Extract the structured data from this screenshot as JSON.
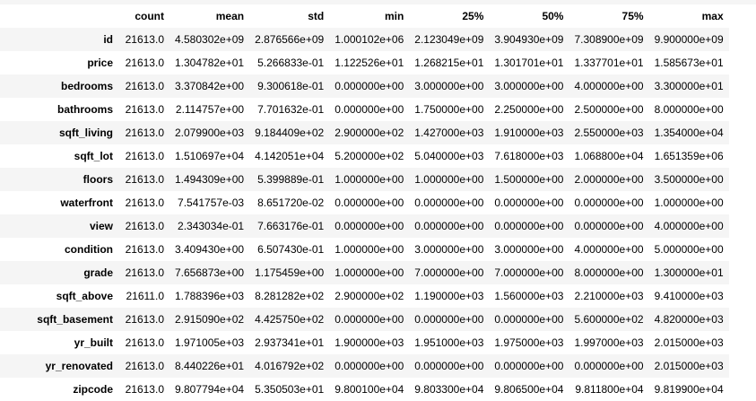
{
  "table": {
    "columns": [
      "",
      "count",
      "mean",
      "std",
      "min",
      "25%",
      "50%",
      "75%",
      "max"
    ],
    "rows": [
      {
        "index": "id",
        "values": [
          "21613.0",
          "4.580302e+09",
          "2.876566e+09",
          "1.000102e+06",
          "2.123049e+09",
          "3.904930e+09",
          "7.308900e+09",
          "9.900000e+09"
        ]
      },
      {
        "index": "price",
        "values": [
          "21613.0",
          "1.304782e+01",
          "5.266833e-01",
          "1.122526e+01",
          "1.268215e+01",
          "1.301701e+01",
          "1.337701e+01",
          "1.585673e+01"
        ]
      },
      {
        "index": "bedrooms",
        "values": [
          "21613.0",
          "3.370842e+00",
          "9.300618e-01",
          "0.000000e+00",
          "3.000000e+00",
          "3.000000e+00",
          "4.000000e+00",
          "3.300000e+01"
        ]
      },
      {
        "index": "bathrooms",
        "values": [
          "21613.0",
          "2.114757e+00",
          "7.701632e-01",
          "0.000000e+00",
          "1.750000e+00",
          "2.250000e+00",
          "2.500000e+00",
          "8.000000e+00"
        ]
      },
      {
        "index": "sqft_living",
        "values": [
          "21613.0",
          "2.079900e+03",
          "9.184409e+02",
          "2.900000e+02",
          "1.427000e+03",
          "1.910000e+03",
          "2.550000e+03",
          "1.354000e+04"
        ]
      },
      {
        "index": "sqft_lot",
        "values": [
          "21613.0",
          "1.510697e+04",
          "4.142051e+04",
          "5.200000e+02",
          "5.040000e+03",
          "7.618000e+03",
          "1.068800e+04",
          "1.651359e+06"
        ]
      },
      {
        "index": "floors",
        "values": [
          "21613.0",
          "1.494309e+00",
          "5.399889e-01",
          "1.000000e+00",
          "1.000000e+00",
          "1.500000e+00",
          "2.000000e+00",
          "3.500000e+00"
        ]
      },
      {
        "index": "waterfront",
        "values": [
          "21613.0",
          "7.541757e-03",
          "8.651720e-02",
          "0.000000e+00",
          "0.000000e+00",
          "0.000000e+00",
          "0.000000e+00",
          "1.000000e+00"
        ]
      },
      {
        "index": "view",
        "values": [
          "21613.0",
          "2.343034e-01",
          "7.663176e-01",
          "0.000000e+00",
          "0.000000e+00",
          "0.000000e+00",
          "0.000000e+00",
          "4.000000e+00"
        ]
      },
      {
        "index": "condition",
        "values": [
          "21613.0",
          "3.409430e+00",
          "6.507430e-01",
          "1.000000e+00",
          "3.000000e+00",
          "3.000000e+00",
          "4.000000e+00",
          "5.000000e+00"
        ]
      },
      {
        "index": "grade",
        "values": [
          "21613.0",
          "7.656873e+00",
          "1.175459e+00",
          "1.000000e+00",
          "7.000000e+00",
          "7.000000e+00",
          "8.000000e+00",
          "1.300000e+01"
        ]
      },
      {
        "index": "sqft_above",
        "values": [
          "21611.0",
          "1.788396e+03",
          "8.281282e+02",
          "2.900000e+02",
          "1.190000e+03",
          "1.560000e+03",
          "2.210000e+03",
          "9.410000e+03"
        ]
      },
      {
        "index": "sqft_basement",
        "values": [
          "21613.0",
          "2.915090e+02",
          "4.425750e+02",
          "0.000000e+00",
          "0.000000e+00",
          "0.000000e+00",
          "5.600000e+02",
          "4.820000e+03"
        ]
      },
      {
        "index": "yr_built",
        "values": [
          "21613.0",
          "1.971005e+03",
          "2.937341e+01",
          "1.900000e+03",
          "1.951000e+03",
          "1.975000e+03",
          "1.997000e+03",
          "2.015000e+03"
        ]
      },
      {
        "index": "yr_renovated",
        "values": [
          "21613.0",
          "8.440226e+01",
          "4.016792e+02",
          "0.000000e+00",
          "0.000000e+00",
          "0.000000e+00",
          "0.000000e+00",
          "2.015000e+03"
        ]
      },
      {
        "index": "zipcode",
        "values": [
          "21613.0",
          "9.807794e+04",
          "5.350503e+01",
          "9.800100e+04",
          "9.803300e+04",
          "9.806500e+04",
          "9.811800e+04",
          "9.819900e+04"
        ]
      }
    ]
  }
}
